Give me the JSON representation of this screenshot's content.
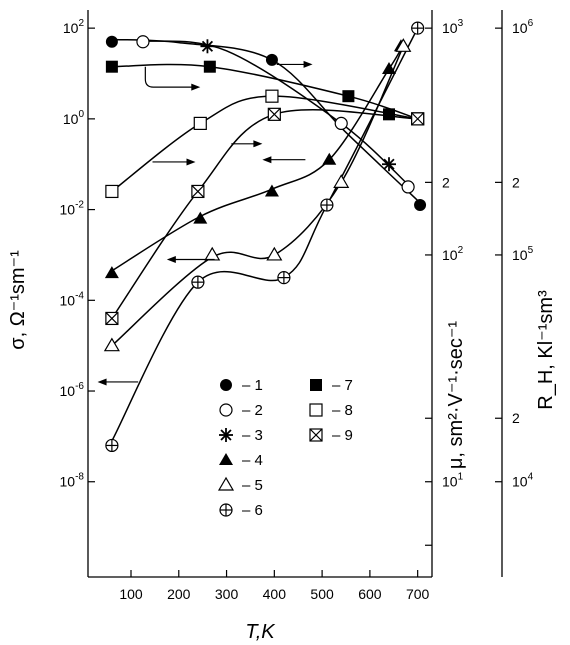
{
  "chart_data": {
    "type": "scatter",
    "xlabel": "T,K",
    "ylabel_left": "σ, Ω⁻¹sm⁻¹",
    "ylabel_mid": "μ, sm²·V⁻¹·sec⁻¹",
    "ylabel_right": "R_H, Kl⁻¹sm³",
    "x_ticks": [
      "100",
      "200",
      "300",
      "400",
      "500",
      "600",
      "700"
    ],
    "x_tick_values": [
      100,
      200,
      300,
      400,
      500,
      600,
      700
    ],
    "xlim": [
      10,
      730
    ],
    "ylim_log10": [
      -10.1,
      2.4
    ],
    "y_scale": "log",
    "y_ticks": [
      {
        "exp": 2,
        "base": "10",
        "sup": "2"
      },
      {
        "exp": 0,
        "base": "10",
        "sup": "0"
      },
      {
        "exp": -2,
        "base": "10",
        "sup": "-2"
      },
      {
        "exp": -4,
        "base": "10",
        "sup": "-4"
      },
      {
        "exp": -6,
        "base": "10",
        "sup": "-6"
      },
      {
        "exp": -8,
        "base": "10",
        "sup": "-8"
      }
    ],
    "mid_axis_ticks": [
      {
        "at_exp": 2,
        "base": "10",
        "sup": "3"
      },
      {
        "at_exp": -1.4,
        "base": "2",
        "sup": ""
      },
      {
        "at_exp": -3,
        "base": "10",
        "sup": "2"
      },
      {
        "at_exp": -8,
        "base": "10",
        "sup": "1"
      }
    ],
    "mid_axis_minor_exp": [
      -6.6,
      -9.4
    ],
    "right_axis_ticks": [
      {
        "at_exp": 2,
        "base": "10",
        "sup": "6"
      },
      {
        "at_exp": -1.4,
        "base": "2",
        "sup": ""
      },
      {
        "at_exp": -3,
        "base": "10",
        "sup": "5"
      },
      {
        "at_exp": -6.6,
        "base": "2",
        "sup": ""
      },
      {
        "at_exp": -8,
        "base": "10",
        "sup": "4"
      }
    ],
    "legend": [
      {
        "marker": "filled-circle",
        "label": "– 1"
      },
      {
        "marker": "open-circle",
        "label": "– 2"
      },
      {
        "marker": "star",
        "label": "– 3"
      },
      {
        "marker": "filled-triangle",
        "label": "– 4"
      },
      {
        "marker": "open-triangle",
        "label": "– 5"
      },
      {
        "marker": "circle-plus",
        "label": "– 6"
      },
      {
        "marker": "filled-square",
        "label": "– 7"
      },
      {
        "marker": "open-square",
        "label": "– 8"
      },
      {
        "marker": "square-x",
        "label": "– 9"
      }
    ],
    "series": [
      {
        "marker": "filled-circle",
        "x": [
          60,
          395,
          705
        ],
        "y_log10": [
          1.7,
          1.3,
          -1.9
        ],
        "curve": [
          [
            60,
            1.75
          ],
          [
            200,
            1.68
          ],
          [
            395,
            1.3
          ],
          [
            550,
            -0.3
          ],
          [
            705,
            -1.85
          ]
        ]
      },
      {
        "marker": "open-circle",
        "x": [
          125,
          540,
          680
        ],
        "y_log10": [
          1.7,
          -0.1,
          -1.5
        ],
        "curve": [
          [
            130,
            1.72
          ],
          [
            300,
            1.5
          ],
          [
            540,
            -0.1
          ],
          [
            680,
            -1.45
          ]
        ]
      },
      {
        "marker": "star",
        "x": [
          260,
          640
        ],
        "y_log10": [
          1.6,
          -1.0
        ]
      },
      {
        "marker": "filled-triangle",
        "x": [
          60,
          245,
          395,
          515,
          640,
          665
        ],
        "y_log10": [
          -3.4,
          -2.2,
          -1.6,
          -0.9,
          1.1,
          1.6
        ],
        "curve": [
          [
            60,
            -3.35
          ],
          [
            245,
            -2.15
          ],
          [
            395,
            -1.55
          ],
          [
            515,
            -0.9
          ],
          [
            640,
            1.1
          ],
          [
            668,
            1.6
          ]
        ]
      },
      {
        "marker": "open-triangle",
        "x": [
          60,
          270,
          400,
          540,
          670
        ],
        "y_log10": [
          -5.0,
          -3.0,
          -3.0,
          -1.4,
          1.6
        ],
        "curve": [
          [
            60,
            -5.0
          ],
          [
            270,
            -3.05
          ],
          [
            400,
            -3.0
          ],
          [
            540,
            -1.4
          ],
          [
            670,
            1.6
          ]
        ]
      },
      {
        "marker": "circle-plus",
        "x": [
          60,
          240,
          420,
          510,
          700
        ],
        "y_log10": [
          -7.2,
          -3.6,
          -3.5,
          -1.9,
          2.0
        ],
        "curve": [
          [
            60,
            -7.1
          ],
          [
            240,
            -3.6
          ],
          [
            420,
            -3.5
          ],
          [
            510,
            -1.9
          ],
          [
            700,
            2.0
          ]
        ]
      },
      {
        "marker": "filled-square",
        "x": [
          60,
          265,
          555,
          640
        ],
        "y_log10": [
          1.15,
          1.15,
          0.5,
          0.1
        ],
        "curve": [
          [
            60,
            1.15
          ],
          [
            265,
            1.15
          ],
          [
            555,
            0.5
          ],
          [
            700,
            0.0
          ]
        ]
      },
      {
        "marker": "open-square",
        "x": [
          60,
          245,
          395,
          700
        ],
        "y_log10": [
          -1.6,
          -0.1,
          0.5,
          0.0
        ],
        "curve": [
          [
            60,
            -1.6
          ],
          [
            245,
            -0.1
          ],
          [
            395,
            0.5
          ],
          [
            700,
            0.0
          ]
        ]
      },
      {
        "marker": "square-x",
        "x": [
          60,
          240,
          400,
          700
        ],
        "y_log10": [
          -4.4,
          -1.6,
          0.1,
          0.0
        ],
        "curve": [
          [
            60,
            -4.4
          ],
          [
            240,
            -1.6
          ],
          [
            400,
            0.1
          ],
          [
            700,
            0.0
          ]
        ]
      }
    ],
    "annotations": [
      {
        "type": "arrow",
        "x1": 405,
        "y1": 1.2,
        "x2": 480,
        "y2": 1.2
      },
      {
        "type": "hook-arrow",
        "x1": 130,
        "y1": 1.15,
        "x2": 245,
        "y2": 0.7
      },
      {
        "type": "arrow",
        "x1": 145,
        "y1": -0.95,
        "x2": 235,
        "y2": -0.95
      },
      {
        "type": "arrow",
        "x1": 310,
        "y1": -0.55,
        "x2": 375,
        "y2": -0.55
      },
      {
        "type": "arrow",
        "x1": 465,
        "y1": -0.9,
        "x2": 375,
        "y2": -0.9
      },
      {
        "type": "arrow",
        "x1": 275,
        "y1": -3.1,
        "x2": 175,
        "y2": -3.1
      },
      {
        "type": "arrow",
        "x1": 115,
        "y1": -5.8,
        "x2": 30,
        "y2": -5.8
      }
    ]
  }
}
